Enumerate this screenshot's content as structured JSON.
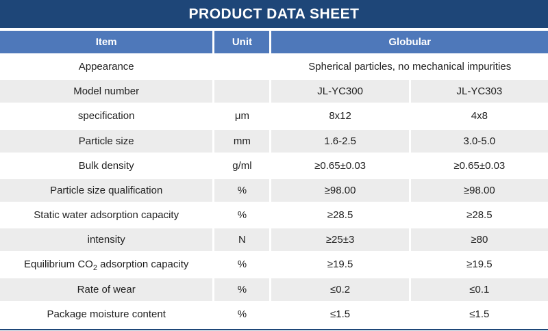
{
  "title": "PRODUCT DATA SHEET",
  "colors": {
    "title_bg": "#1e4678",
    "header_bg": "#4e78ba",
    "row_alt_bg": "#ececec",
    "header_text": "#ffffff",
    "body_text": "#1f1f1f"
  },
  "table": {
    "headers": {
      "item": "Item",
      "unit": "Unit",
      "group": "Globular"
    },
    "rows": [
      {
        "item": "Appearance",
        "unit": "",
        "span": "Spherical particles, no mechanical impurities"
      },
      {
        "item": "Model number",
        "unit": "",
        "v1": "JL-YC300",
        "v2": "JL-YC303"
      },
      {
        "item": "specification",
        "unit": "μm",
        "v1": "8x12",
        "v2": "4x8"
      },
      {
        "item": "Particle size",
        "unit": "mm",
        "v1": "1.6-2.5",
        "v2": "3.0-5.0"
      },
      {
        "item": "Bulk density",
        "unit": "g/ml",
        "v1": "≥0.65±0.03",
        "v2": "≥0.65±0.03"
      },
      {
        "item": "Particle size qualification",
        "unit": "%",
        "v1": "≥98.00",
        "v2": "≥98.00"
      },
      {
        "item": "Static water adsorption capacity",
        "unit": "%",
        "v1": "≥28.5",
        "v2": "≥28.5"
      },
      {
        "item": "intensity",
        "unit": "N",
        "v1": "≥25±3",
        "v2": "≥80"
      },
      {
        "item_pre": "Equilibrium CO",
        "item_sub": "2",
        "item_post": " adsorption capacity",
        "unit": "%",
        "v1": "≥19.5",
        "v2": "≥19.5"
      },
      {
        "item": "Rate of wear",
        "unit": "%",
        "v1": "≤0.2",
        "v2": "≤0.1"
      },
      {
        "item": "Package moisture content",
        "unit": "%",
        "v1": "≤1.5",
        "v2": "≤1.5"
      }
    ]
  }
}
